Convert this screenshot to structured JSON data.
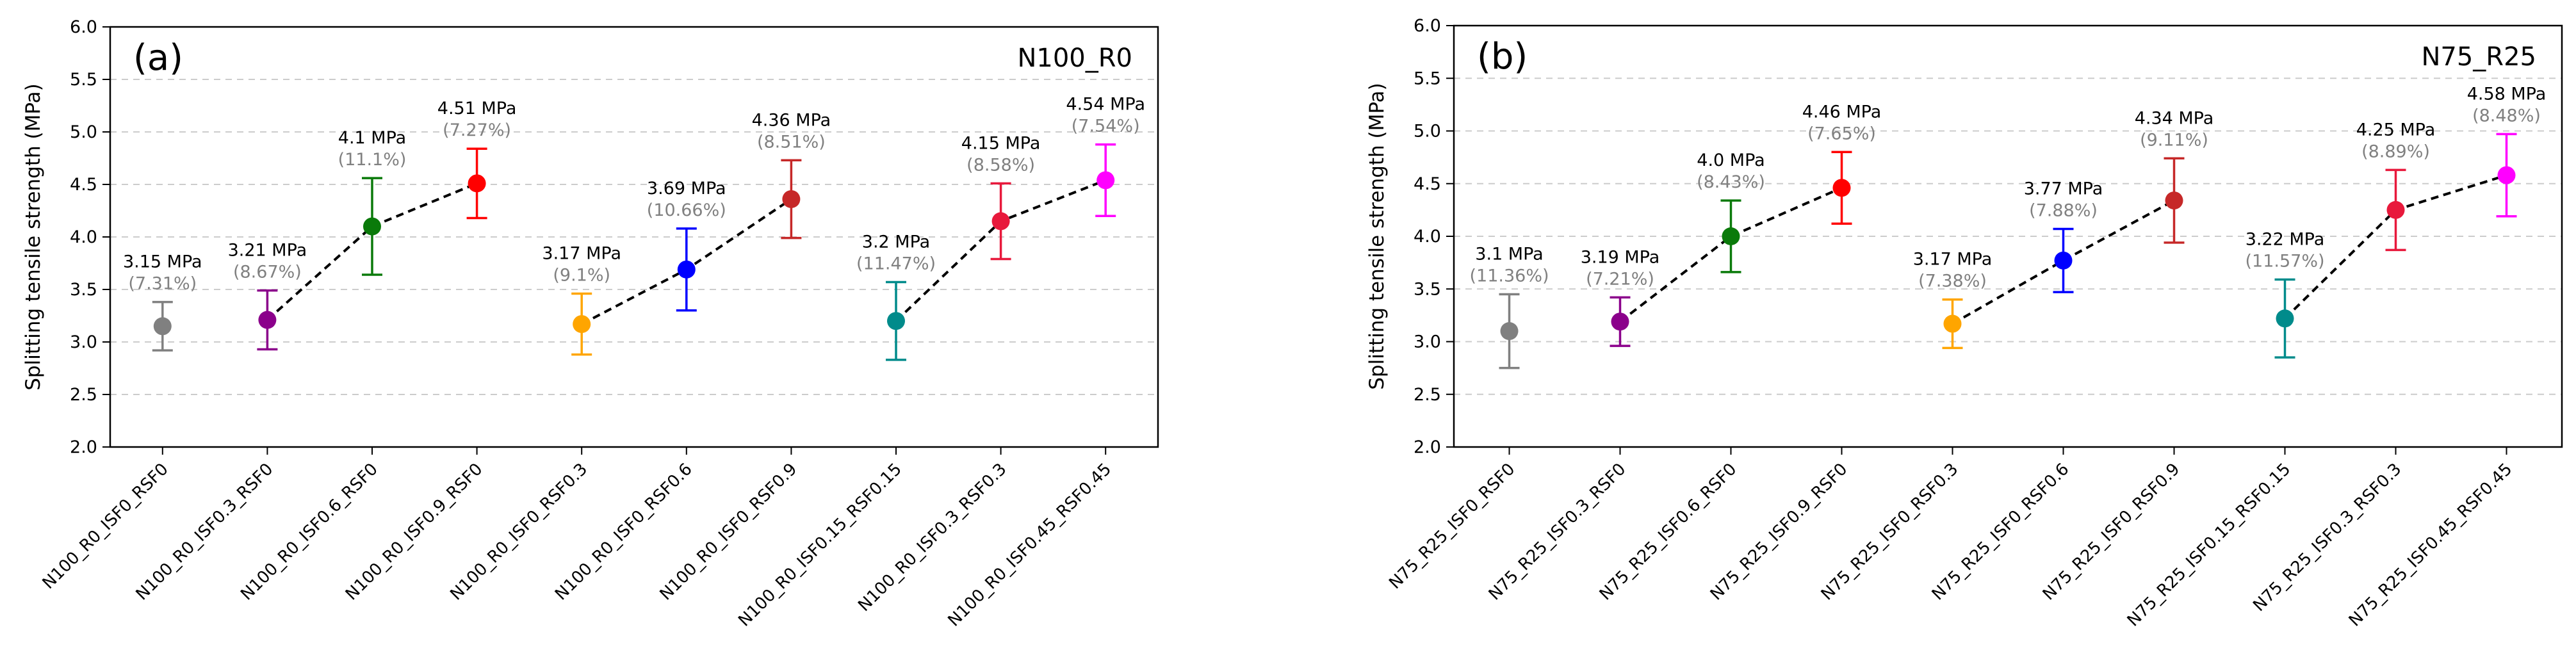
{
  "chart_data": [
    {
      "type": "errorbar",
      "panel_label": "(a)",
      "title": "N100_R0",
      "xlabel": "",
      "ylabel": "Splitting tensile strength (MPa)",
      "ylim": [
        2.0,
        6.0
      ],
      "yticks": [
        "2.0",
        "2.5",
        "3.0",
        "3.5",
        "4.0",
        "4.5",
        "5.0",
        "5.5",
        "6.0"
      ],
      "grid": "horizontal-dashed",
      "categories": [
        "N100_R0_ISF0_RSF0",
        "N100_R0_ISF0.3_RSF0",
        "N100_R0_ISF0.6_RSF0",
        "N100_R0_ISF0.9_RSF0",
        "N100_R0_ISF0_RSF0.3",
        "N100_R0_ISF0_RSF0.6",
        "N100_R0_ISF0_RSF0.9",
        "N100_R0_ISF0.15_RSF0.15",
        "N100_R0_ISF0.3_RSF0.3",
        "N100_R0_ISF0.45_RSF0.45"
      ],
      "values": [
        3.15,
        3.21,
        4.1,
        4.51,
        3.17,
        3.69,
        4.36,
        3.2,
        4.15,
        4.54
      ],
      "errors": [
        0.23,
        0.28,
        0.46,
        0.33,
        0.29,
        0.39,
        0.37,
        0.37,
        0.36,
        0.34
      ],
      "value_labels": [
        "3.15 MPa",
        "3.21 MPa",
        "4.1 MPa",
        "4.51 MPa",
        "3.17 MPa",
        "3.69 MPa",
        "4.36 MPa",
        "3.2 MPa",
        "4.15 MPa",
        "4.54 MPa"
      ],
      "cv_labels": [
        "(7.31%)",
        "(8.67%)",
        "(11.1%)",
        "(7.27%)",
        "(9.1%)",
        "(10.66%)",
        "(8.51%)",
        "(11.47%)",
        "(8.58%)",
        "(7.54%)"
      ],
      "colors": [
        "#808080",
        "#8b008b",
        "#0a7a0a",
        "#ff0000",
        "#ffa500",
        "#0000ff",
        "#c62828",
        "#008b8b",
        "#e8193c",
        "#ff00ff"
      ],
      "connected_groups": [
        [
          1,
          2,
          3
        ],
        [
          4,
          5,
          6
        ],
        [
          7,
          8,
          9
        ]
      ]
    },
    {
      "type": "errorbar",
      "panel_label": "(b)",
      "title": "N75_R25",
      "xlabel": "",
      "ylabel": "Splitting tensile strength (MPa)",
      "ylim": [
        2.0,
        6.0
      ],
      "yticks": [
        "2.0",
        "2.5",
        "3.0",
        "3.5",
        "4.0",
        "4.5",
        "5.0",
        "5.5",
        "6.0"
      ],
      "grid": "horizontal-dashed",
      "categories": [
        "N75_R25_ISF0_RSF0",
        "N75_R25_ISF0.3_RSF0",
        "N75_R25_ISF0.6_RSF0",
        "N75_R25_ISF0.9_RSF0",
        "N75_R25_ISF0_RSF0.3",
        "N75_R25_ISF0_RSF0.6",
        "N75_R25_ISF0_RSF0.9",
        "N75_R25_ISF0.15_RSF0.15",
        "N75_R25_ISF0.3_RSF0.3",
        "N75_R25_ISF0.45_RSF0.45"
      ],
      "values": [
        3.1,
        3.19,
        4.0,
        4.46,
        3.17,
        3.77,
        4.34,
        3.22,
        4.25,
        4.58
      ],
      "errors": [
        0.35,
        0.23,
        0.34,
        0.34,
        0.23,
        0.3,
        0.4,
        0.37,
        0.38,
        0.39
      ],
      "value_labels": [
        "3.1 MPa",
        "3.19 MPa",
        "4.0 MPa",
        "4.46 MPa",
        "3.17 MPa",
        "3.77 MPa",
        "4.34 MPa",
        "3.22 MPa",
        "4.25 MPa",
        "4.58 MPa"
      ],
      "cv_labels": [
        "(11.36%)",
        "(7.21%)",
        "(8.43%)",
        "(7.65%)",
        "(7.38%)",
        "(7.88%)",
        "(9.11%)",
        "(11.57%)",
        "(8.89%)",
        "(8.48%)"
      ],
      "colors": [
        "#808080",
        "#8b008b",
        "#0a7a0a",
        "#ff0000",
        "#ffa500",
        "#0000ff",
        "#c62828",
        "#008b8b",
        "#e8193c",
        "#ff00ff"
      ],
      "connected_groups": [
        [
          1,
          2,
          3
        ],
        [
          4,
          5,
          6
        ],
        [
          7,
          8,
          9
        ]
      ]
    }
  ]
}
